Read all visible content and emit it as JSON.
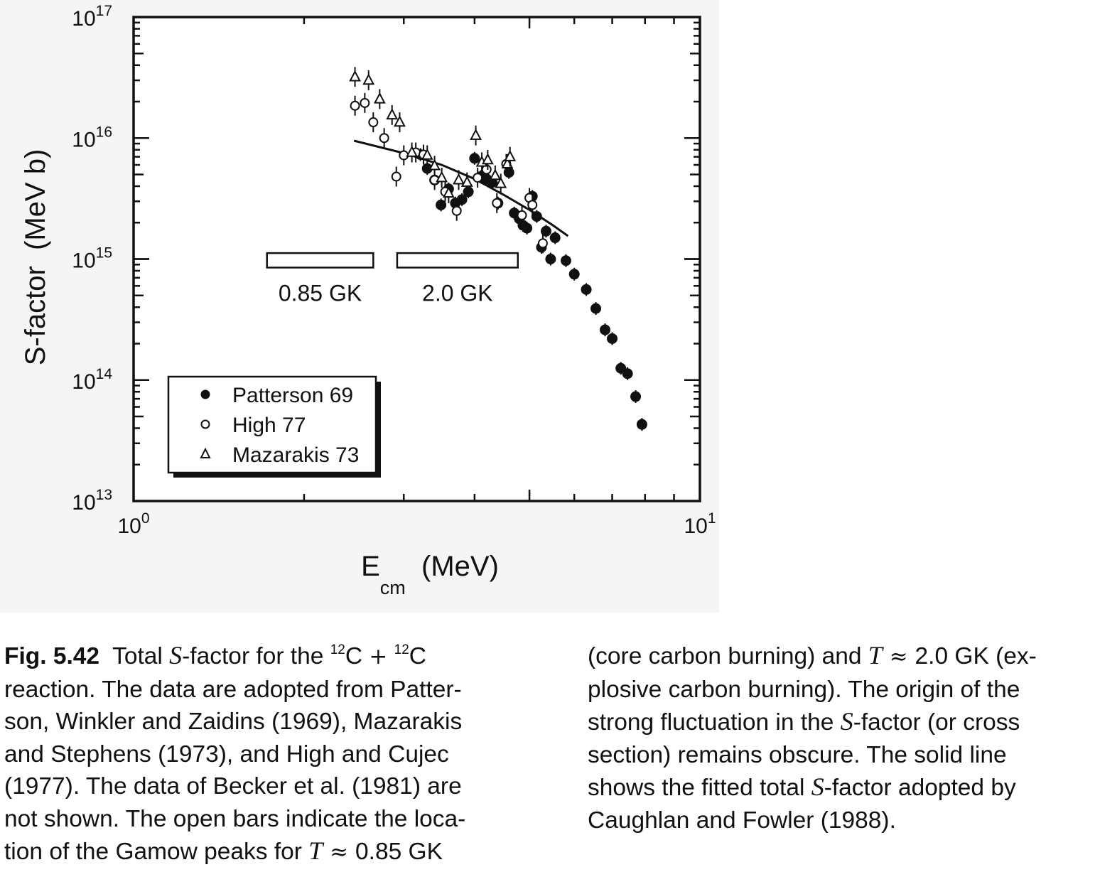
{
  "chart_data": {
    "type": "scatter",
    "x_scale": "log",
    "y_scale": "log",
    "xlim": [
      1,
      10
    ],
    "ylim": [
      10000000000000.0,
      1e+17
    ],
    "xlabel": {
      "main": "E",
      "sub": "cm",
      "unit": "(MeV)"
    },
    "ylabel": "S-factor  (MeV b)",
    "x_ticklabels": [
      {
        "base": "10",
        "exp": "0",
        "value": 1
      },
      {
        "base": "10",
        "exp": "1",
        "value": 10
      }
    ],
    "y_ticklabels": [
      {
        "base": "10",
        "exp": "13",
        "value": 10000000000000.0
      },
      {
        "base": "10",
        "exp": "14",
        "value": 100000000000000.0
      },
      {
        "base": "10",
        "exp": "15",
        "value": 1000000000000000.0
      },
      {
        "base": "10",
        "exp": "16",
        "value": 1e+16
      },
      {
        "base": "10",
        "exp": "17",
        "value": 1e+17
      }
    ],
    "legend": {
      "placement": "lower-left",
      "entries": [
        {
          "label": "Patterson 69",
          "marker": "filled-circle"
        },
        {
          "label": "High 77",
          "marker": "open-circle"
        },
        {
          "label": "Mazarakis 73",
          "marker": "open-triangle"
        }
      ]
    },
    "series": [
      {
        "name": "Patterson 69",
        "marker": "filled-circle",
        "points": [
          [
            3.21,
            7300000000000000.0
          ],
          [
            3.3,
            5600000000000000.0
          ],
          [
            3.4,
            4500000000000000.0
          ],
          [
            3.49,
            2800000000000000.0
          ],
          [
            3.6,
            3800000000000000.0
          ],
          [
            3.7,
            2900000000000000.0
          ],
          [
            3.8,
            3100000000000000.0
          ],
          [
            3.9,
            3600000000000000.0
          ],
          [
            4.0,
            6800000000000000.0
          ],
          [
            4.1,
            4800000000000000.0
          ],
          [
            4.2,
            4600000000000000.0
          ],
          [
            4.3,
            4300000000000000.0
          ],
          [
            4.4,
            2900000000000000.0
          ],
          [
            4.6,
            5200000000000000.0
          ],
          [
            4.7,
            2400000000000000.0
          ],
          [
            4.8,
            2150000000000000.0
          ],
          [
            4.87,
            1900000000000000.0
          ],
          [
            4.95,
            1800000000000000.0
          ],
          [
            5.06,
            3300000000000000.0
          ],
          [
            5.15,
            2250000000000000.0
          ],
          [
            5.25,
            1250000000000000.0
          ],
          [
            5.35,
            1700000000000000.0
          ],
          [
            5.45,
            1000000000000000.0
          ],
          [
            5.55,
            1500000000000000.0
          ],
          [
            5.8,
            970000000000000.0
          ],
          [
            6.0,
            750000000000000.0
          ],
          [
            6.3,
            560000000000000.0
          ],
          [
            6.55,
            390000000000000.0
          ],
          [
            6.8,
            260000000000000.0
          ],
          [
            7.0,
            220000000000000.0
          ],
          [
            7.25,
            125000000000000.0
          ],
          [
            7.45,
            113000000000000.0
          ],
          [
            7.7,
            73000000000000.0
          ],
          [
            7.9,
            43000000000000.0
          ]
        ]
      },
      {
        "name": "High 77",
        "marker": "open-circle",
        "points": [
          [
            2.46,
            1.85e+16
          ],
          [
            2.56,
            1.95e+16
          ],
          [
            2.65,
            1.35e+16
          ],
          [
            2.77,
            1e+16
          ],
          [
            2.91,
            4800000000000000.0
          ],
          [
            3.0,
            7200000000000000.0
          ],
          [
            3.15,
            7600000000000000.0
          ],
          [
            3.25,
            7300000000000000.0
          ],
          [
            3.4,
            4500000000000000.0
          ],
          [
            3.55,
            3600000000000000.0
          ],
          [
            3.72,
            2500000000000000.0
          ],
          [
            4.05,
            4700000000000000.0
          ],
          [
            4.2,
            5500000000000000.0
          ],
          [
            4.38,
            2900000000000000.0
          ],
          [
            4.55,
            6100000000000000.0
          ],
          [
            4.85,
            2300000000000000.0
          ],
          [
            5.0,
            3200000000000000.0
          ],
          [
            5.06,
            2800000000000000.0
          ],
          [
            5.28,
            1350000000000000.0
          ]
        ]
      },
      {
        "name": "Mazarakis 73",
        "marker": "open-triangle",
        "points": [
          [
            2.46,
            3.2e+16
          ],
          [
            2.6,
            3e+16
          ],
          [
            2.72,
            2.1e+16
          ],
          [
            2.86,
            1.55e+16
          ],
          [
            2.95,
            1.35e+16
          ],
          [
            3.1,
            7600000000000000.0
          ],
          [
            3.3,
            7200000000000000.0
          ],
          [
            3.4,
            5900000000000000.0
          ],
          [
            3.5,
            4700000000000000.0
          ],
          [
            3.6,
            3500000000000000.0
          ],
          [
            3.75,
            4500000000000000.0
          ],
          [
            3.88,
            4300000000000000.0
          ],
          [
            4.02,
            1.05e+16
          ],
          [
            4.12,
            6300000000000000.0
          ],
          [
            4.22,
            6600000000000000.0
          ],
          [
            4.35,
            4900000000000000.0
          ],
          [
            4.45,
            4200000000000000.0
          ],
          [
            4.57,
            6100000000000000.0
          ],
          [
            4.62,
            7000000000000000.0
          ]
        ]
      }
    ],
    "fit_line": {
      "x": [
        2.45,
        3.0,
        3.5,
        4.0,
        4.5,
        5.0,
        5.5,
        5.85
      ],
      "y": [
        9500000000000000.0,
        7500000000000000.0,
        6000000000000000.0,
        4600000000000000.0,
        3400000000000000.0,
        2550000000000000.0,
        1900000000000000.0,
        1550000000000000.0
      ]
    },
    "gamow_bars": [
      {
        "label": "0.85 GK",
        "x_range": [
          1.72,
          2.65
        ],
        "y_range": [
          850000000000000.0,
          1120000000000000.0
        ]
      },
      {
        "label": "2.0 GK",
        "x_range": [
          2.92,
          4.77
        ],
        "y_range": [
          850000000000000.0,
          1120000000000000.0
        ]
      }
    ]
  },
  "caption": {
    "left_lines": [
      [
        {
          "t": "Fig. 5.42",
          "s": "b"
        },
        {
          "t": "  Total "
        },
        {
          "t": "S",
          "s": "i"
        },
        {
          "t": "-factor for the "
        },
        {
          "t": "12",
          "s": "sup"
        },
        {
          "t": "C "
        },
        {
          "t": "+",
          "s": "m"
        },
        {
          "t": " "
        },
        {
          "t": "12",
          "s": "sup"
        },
        {
          "t": "C"
        }
      ],
      [
        {
          "t": "reaction. The data are adopted from Patter-"
        }
      ],
      [
        {
          "t": "son, Winkler and Zaidins (1969), Mazarakis"
        }
      ],
      [
        {
          "t": "and Stephens (1973), and High and Cujec"
        }
      ],
      [
        {
          "t": "(1977). The data of Becker et al. (1981) are"
        }
      ],
      [
        {
          "t": "not shown. The open bars indicate the loca-"
        }
      ],
      [
        {
          "t": "tion of the Gamow peaks for "
        },
        {
          "t": "T",
          "s": "i"
        },
        {
          "t": " ≈ ",
          "s": "m"
        },
        {
          "t": "0.85 GK"
        }
      ]
    ],
    "right_lines": [
      [
        {
          "t": "(core carbon burning) and "
        },
        {
          "t": "T",
          "s": "i"
        },
        {
          "t": " ≈ ",
          "s": "m"
        },
        {
          "t": "2.0 GK (ex-"
        }
      ],
      [
        {
          "t": "plosive carbon burning). The origin of the"
        }
      ],
      [
        {
          "t": "strong fluctuation in the "
        },
        {
          "t": "S",
          "s": "i"
        },
        {
          "t": "-factor (or cross"
        }
      ],
      [
        {
          "t": "section) remains obscure. The solid line"
        }
      ],
      [
        {
          "t": "shows the fitted total "
        },
        {
          "t": "S",
          "s": "i"
        },
        {
          "t": "-factor adopted by"
        }
      ],
      [
        {
          "t": "Caughlan and Fowler (1988)."
        }
      ]
    ]
  }
}
